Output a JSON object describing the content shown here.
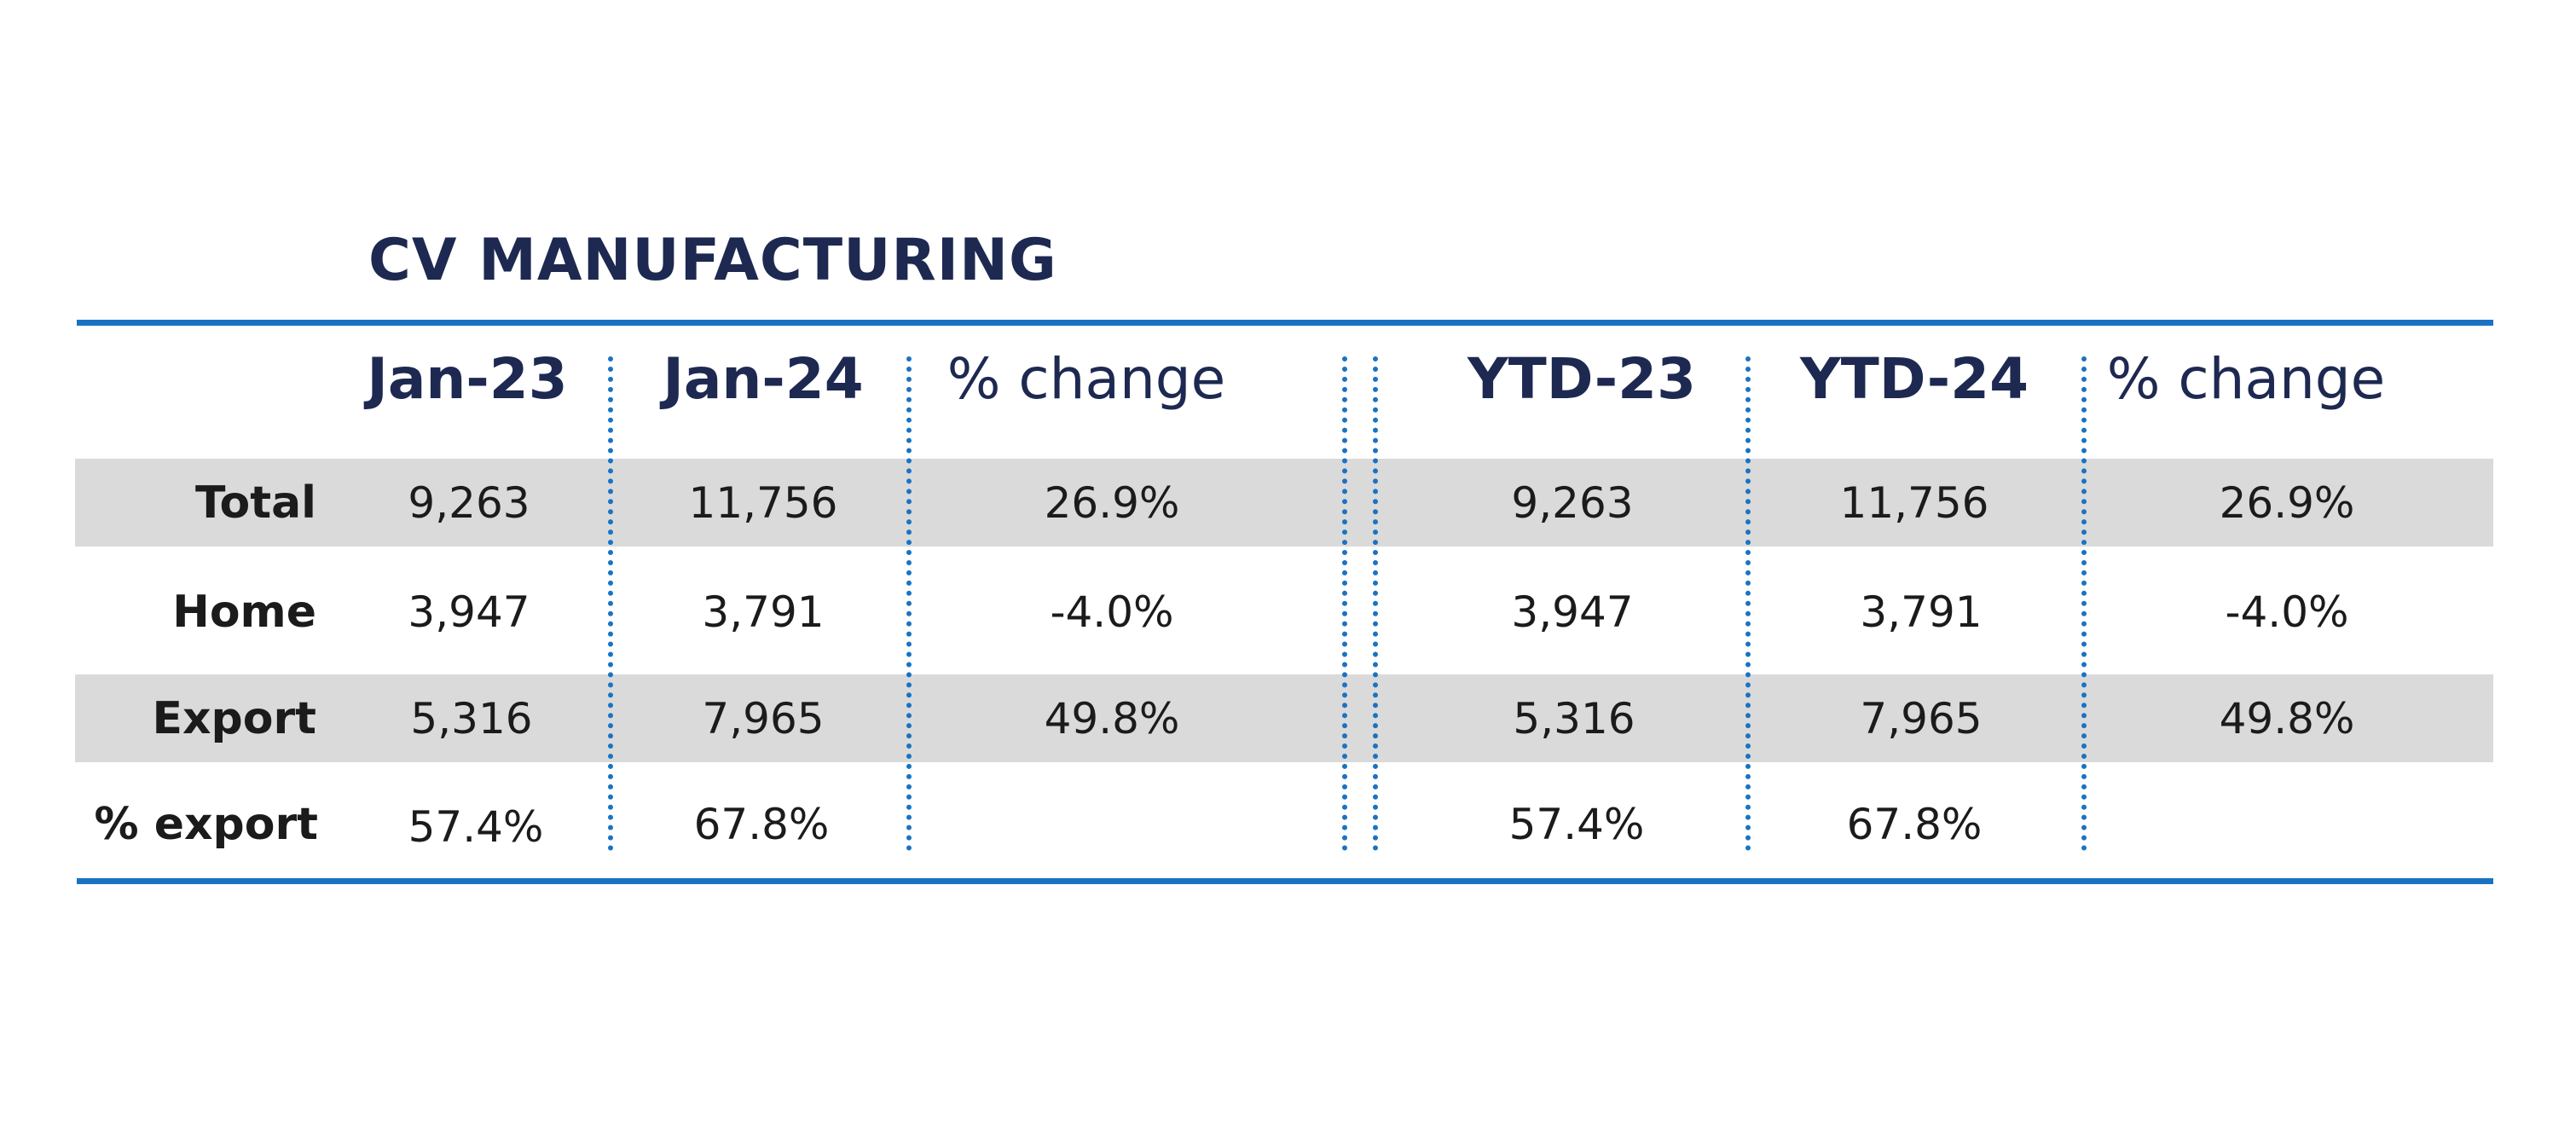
{
  "chart_data": {
    "type": "table",
    "title": "CV MANUFACTURING",
    "columns": [
      "Jan-23",
      "Jan-24",
      "% change",
      "YTD-23",
      "YTD-24",
      "% change"
    ],
    "rows": [
      {
        "label": "Total",
        "values": [
          "9,263",
          "11,756",
          "26.9%",
          "9,263",
          "11,756",
          "26.9%"
        ]
      },
      {
        "label": "Home",
        "values": [
          "3,947",
          "3,791",
          "-4.0%",
          "3,947",
          "3,791",
          "-4.0%"
        ]
      },
      {
        "label": "Export",
        "values": [
          "5,316",
          "7,965",
          "49.8%",
          "5,316",
          "7,965",
          "49.8%"
        ]
      },
      {
        "label": "% export",
        "values": [
          "57.4%",
          "67.8%",
          "",
          "57.4%",
          "67.8%",
          ""
        ]
      }
    ],
    "accent_color": "#1a73c2",
    "header_color": "#1d2951",
    "band_color": "#dadada"
  }
}
